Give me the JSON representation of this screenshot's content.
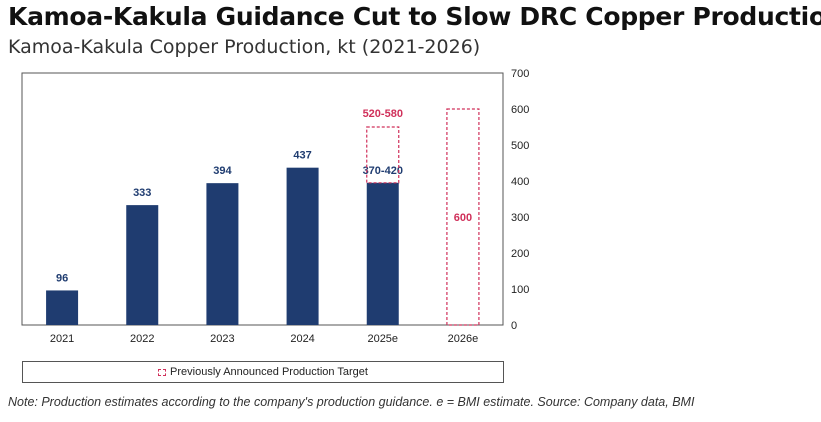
{
  "header": {
    "title": "Kamoa-Kakula Guidance Cut to Slow DRC Copper Production",
    "subtitle": "Kamoa-Kakula Copper Production, kt (2021-2026)"
  },
  "chart_data": {
    "type": "bar",
    "categories": [
      "2021",
      "2022",
      "2023",
      "2024",
      "2025e",
      "2026e"
    ],
    "series": [
      {
        "values": [
          96,
          333,
          394,
          437,
          395,
          null
        ],
        "data_labels": [
          "96",
          "333",
          "394",
          "437",
          "370-420",
          ""
        ],
        "color": "#1f3c70"
      },
      {
        "name": "Previously Announced Production Target",
        "values": [
          null,
          null,
          null,
          null,
          [
            395,
            550
          ],
          [
            0,
            600
          ]
        ],
        "data_labels": [
          "",
          "",
          "",
          "",
          "520-580",
          "600"
        ],
        "color": "#d0305a",
        "style": "dashed"
      }
    ],
    "ylim": [
      0,
      700
    ],
    "yticks": [
      "0",
      "100",
      "200",
      "300",
      "400",
      "500",
      "600",
      "700"
    ],
    "y_axis_side": "right",
    "grid": false,
    "legend_position": "bottom"
  },
  "legend": {
    "label": "Previously Announced Production Target"
  },
  "footer": {
    "note": "Note: Production estimates according to the company's production guidance. e = BMI estimate. Source: Company data, BMI"
  },
  "colors": {
    "bar": "#1f3c70",
    "target": "#d0305a",
    "axis": "#555555"
  }
}
